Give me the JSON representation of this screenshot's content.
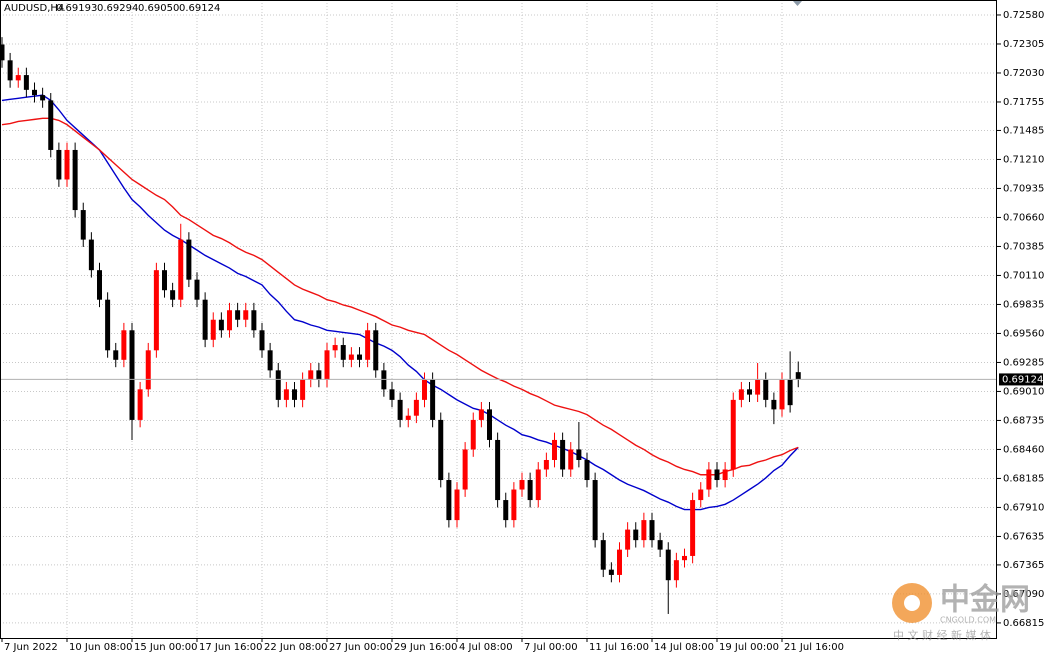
{
  "chart_data": {
    "type": "candlestick",
    "symbol": "AUDUSD,H4",
    "ohlc_labels": [
      "0.69193",
      "0.69294",
      "0.69050",
      "0.69124"
    ],
    "categories": [
      "7 Jun 2022",
      null,
      null,
      null,
      null,
      null,
      null,
      null,
      "10 Jun 08:00",
      null,
      null,
      null,
      null,
      null,
      null,
      null,
      "15 Jun 00:00",
      null,
      null,
      null,
      null,
      null,
      null,
      null,
      "17 Jun 16:00",
      null,
      null,
      null,
      null,
      null,
      null,
      null,
      "22 Jun 08:00",
      null,
      null,
      null,
      null,
      null,
      null,
      null,
      "27 Jun 00:00",
      null,
      null,
      null,
      null,
      null,
      null,
      null,
      "29 Jun 16:00",
      null,
      null,
      null,
      null,
      null,
      null,
      null,
      "4 Jul 08:00",
      null,
      null,
      null,
      null,
      null,
      null,
      null,
      "7 Jul 00:00",
      null,
      null,
      null,
      null,
      null,
      null,
      null,
      "11 Jul 16:00",
      null,
      null,
      null,
      null,
      null,
      null,
      null,
      "14 Jul 08:00",
      null,
      null,
      null,
      null,
      null,
      null,
      null,
      "19 Jul 00:00",
      null,
      null,
      null,
      null,
      null,
      null,
      null,
      "21 Jul 16:00",
      null,
      null
    ],
    "open": [
      0.723,
      0.7215,
      0.7196,
      0.7201,
      0.7187,
      0.7182,
      0.7177,
      0.713,
      0.7102,
      0.713,
      0.7073,
      0.7045,
      0.7016,
      0.6988,
      0.694,
      0.6931,
      0.6959,
      0.6874,
      0.6903,
      0.694,
      0.7016,
      0.6997,
      0.6988,
      0.7045,
      0.7007,
      0.6988,
      0.695,
      0.6969,
      0.6959,
      0.6978,
      0.6969,
      0.6978,
      0.6959,
      0.694,
      0.6921,
      0.6893,
      0.6903,
      0.6893,
      0.6912,
      0.6921,
      0.6912,
      0.694,
      0.6945,
      0.6931,
      0.6936,
      0.6931,
      0.6959,
      0.6921,
      0.6903,
      0.6893,
      0.6874,
      0.6878,
      0.6893,
      0.6912,
      0.6874,
      0.6817,
      0.6779,
      0.6808,
      0.6846,
      0.6874,
      0.6884,
      0.6855,
      0.6798,
      0.6779,
      0.6808,
      0.6817,
      0.6798,
      0.6827,
      0.6836,
      0.6855,
      0.6827,
      0.6846,
      0.6836,
      0.6817,
      0.676,
      0.6732,
      0.6727,
      0.6751,
      0.677,
      0.676,
      0.6779,
      0.676,
      0.6751,
      0.6722,
      0.6741,
      0.6745,
      0.6798,
      0.6808,
      0.6827,
      0.6817,
      0.6827,
      0.6893,
      0.6903,
      0.6898,
      0.6912,
      0.6893,
      0.6884,
      0.6912,
      0.69193
    ],
    "high": [
      0.7237,
      0.7222,
      0.7208,
      0.7208,
      0.7194,
      0.7189,
      0.7184,
      0.7137,
      0.7137,
      0.7137,
      0.708,
      0.7052,
      0.7023,
      0.6995,
      0.6947,
      0.6966,
      0.6966,
      0.691,
      0.6947,
      0.7023,
      0.7023,
      0.7004,
      0.706,
      0.7052,
      0.7014,
      0.6995,
      0.6976,
      0.6976,
      0.6985,
      0.6985,
      0.6985,
      0.6985,
      0.6966,
      0.6947,
      0.6928,
      0.691,
      0.691,
      0.6919,
      0.6928,
      0.6928,
      0.6947,
      0.6952,
      0.6952,
      0.6943,
      0.6943,
      0.6966,
      0.6966,
      0.6928,
      0.691,
      0.69,
      0.6885,
      0.69,
      0.6919,
      0.6919,
      0.6881,
      0.6824,
      0.6815,
      0.6853,
      0.6881,
      0.6891,
      0.6891,
      0.6862,
      0.6805,
      0.6815,
      0.6824,
      0.6824,
      0.6834,
      0.6843,
      0.6862,
      0.6862,
      0.6853,
      0.6872,
      0.6843,
      0.6824,
      0.6767,
      0.6739,
      0.6758,
      0.6777,
      0.6777,
      0.6786,
      0.6786,
      0.6767,
      0.6758,
      0.6748,
      0.6752,
      0.6805,
      0.6815,
      0.6834,
      0.6834,
      0.6834,
      0.69,
      0.691,
      0.691,
      0.6928,
      0.6919,
      0.69,
      0.6919,
      0.6939,
      0.69294
    ],
    "low": [
      0.7208,
      0.7189,
      0.7189,
      0.718,
      0.7175,
      0.717,
      0.7123,
      0.7095,
      0.7095,
      0.7066,
      0.7038,
      0.7009,
      0.6981,
      0.6933,
      0.6924,
      0.6924,
      0.6855,
      0.6867,
      0.6896,
      0.6933,
      0.699,
      0.6981,
      0.6981,
      0.7,
      0.6981,
      0.6943,
      0.6943,
      0.6952,
      0.6952,
      0.6962,
      0.6962,
      0.6952,
      0.6933,
      0.6914,
      0.6886,
      0.6886,
      0.6886,
      0.6886,
      0.6905,
      0.6905,
      0.6905,
      0.6933,
      0.6924,
      0.6924,
      0.6924,
      0.6924,
      0.6914,
      0.6896,
      0.6886,
      0.6867,
      0.6867,
      0.6871,
      0.6886,
      0.6867,
      0.681,
      0.6772,
      0.6772,
      0.6801,
      0.6839,
      0.6867,
      0.6848,
      0.6791,
      0.6772,
      0.6772,
      0.6801,
      0.6791,
      0.6791,
      0.682,
      0.6829,
      0.682,
      0.682,
      0.6829,
      0.681,
      0.6753,
      0.6725,
      0.672,
      0.672,
      0.6744,
      0.6753,
      0.6753,
      0.6753,
      0.6744,
      0.669,
      0.6715,
      0.6734,
      0.6738,
      0.6791,
      0.6801,
      0.681,
      0.681,
      0.682,
      0.6886,
      0.6891,
      0.6891,
      0.6886,
      0.687,
      0.6877,
      0.6881,
      0.6905
    ],
    "close": [
      0.7215,
      0.7196,
      0.7201,
      0.7187,
      0.7182,
      0.7177,
      0.713,
      0.7102,
      0.713,
      0.7073,
      0.7045,
      0.7016,
      0.6988,
      0.694,
      0.6931,
      0.6959,
      0.6874,
      0.6903,
      0.694,
      0.7016,
      0.6997,
      0.6988,
      0.7045,
      0.7007,
      0.6988,
      0.695,
      0.6969,
      0.6959,
      0.6978,
      0.6969,
      0.6978,
      0.6959,
      0.694,
      0.6921,
      0.6893,
      0.6903,
      0.6893,
      0.6912,
      0.6921,
      0.6912,
      0.694,
      0.6945,
      0.6931,
      0.6936,
      0.6931,
      0.6959,
      0.6921,
      0.6903,
      0.6893,
      0.6874,
      0.6878,
      0.6893,
      0.6912,
      0.6874,
      0.6817,
      0.6779,
      0.6808,
      0.6846,
      0.6874,
      0.6884,
      0.6855,
      0.6798,
      0.6779,
      0.6808,
      0.6817,
      0.6798,
      0.6827,
      0.6836,
      0.6855,
      0.6827,
      0.6846,
      0.6836,
      0.6817,
      0.676,
      0.6732,
      0.6727,
      0.6751,
      0.677,
      0.676,
      0.6779,
      0.676,
      0.6751,
      0.6722,
      0.6741,
      0.6745,
      0.6798,
      0.6808,
      0.6827,
      0.6817,
      0.6827,
      0.6893,
      0.6903,
      0.6898,
      0.6912,
      0.6893,
      0.6884,
      0.6912,
      0.6888,
      0.69124
    ],
    "up_color": "#ff0000",
    "down_color": "#000000",
    "moving_averages": [
      {
        "color": "#0000cc",
        "values": [
          0.7177,
          0.7178,
          0.7179,
          0.718,
          0.7181,
          0.7182,
          0.7177,
          0.7168,
          0.7158,
          0.7151,
          0.7144,
          0.7137,
          0.713,
          0.7118,
          0.7106,
          0.7094,
          0.7083,
          0.7076,
          0.7068,
          0.7061,
          0.7054,
          0.7049,
          0.7045,
          0.704,
          0.7035,
          0.703,
          0.7026,
          0.7022,
          0.7018,
          0.7013,
          0.701,
          0.7006,
          0.7002,
          0.6993,
          0.6986,
          0.6977,
          0.6969,
          0.6967,
          0.6964,
          0.6962,
          0.6959,
          0.6958,
          0.6957,
          0.6956,
          0.6955,
          0.6951,
          0.6947,
          0.6944,
          0.694,
          0.6934,
          0.6926,
          0.692,
          0.6912,
          0.6907,
          0.6903,
          0.6898,
          0.6893,
          0.6889,
          0.6885,
          0.6883,
          0.6879,
          0.6874,
          0.6869,
          0.6865,
          0.686,
          0.6858,
          0.6855,
          0.6853,
          0.685,
          0.6847,
          0.6844,
          0.684,
          0.6836,
          0.6831,
          0.6827,
          0.6822,
          0.6817,
          0.6813,
          0.681,
          0.6807,
          0.6803,
          0.6799,
          0.6796,
          0.6792,
          0.6789,
          0.6789,
          0.6789,
          0.6791,
          0.6792,
          0.6794,
          0.6798,
          0.6803,
          0.6808,
          0.6813,
          0.6819,
          0.6826,
          0.6831,
          0.684,
          0.6848
        ]
      },
      {
        "color": "#ee1111",
        "values": [
          0.7154,
          0.7155,
          0.7157,
          0.7158,
          0.7159,
          0.716,
          0.716,
          0.7158,
          0.7154,
          0.7148,
          0.7142,
          0.7136,
          0.713,
          0.7123,
          0.7116,
          0.7109,
          0.7102,
          0.7097,
          0.7092,
          0.7087,
          0.7083,
          0.7076,
          0.7068,
          0.7064,
          0.7059,
          0.7054,
          0.7049,
          0.7046,
          0.7042,
          0.7037,
          0.7033,
          0.703,
          0.7026,
          0.702,
          0.7014,
          0.7008,
          0.7002,
          0.6998,
          0.6995,
          0.6992,
          0.6988,
          0.6986,
          0.6983,
          0.6981,
          0.6978,
          0.6975,
          0.6972,
          0.6968,
          0.6964,
          0.6962,
          0.6959,
          0.6957,
          0.6955,
          0.695,
          0.6945,
          0.694,
          0.6936,
          0.6931,
          0.6926,
          0.6921,
          0.6917,
          0.6913,
          0.691,
          0.6906,
          0.6903,
          0.6899,
          0.6896,
          0.6892,
          0.6888,
          0.6886,
          0.6884,
          0.6882,
          0.6879,
          0.6874,
          0.6869,
          0.6865,
          0.686,
          0.6855,
          0.685,
          0.6846,
          0.6841,
          0.6837,
          0.6834,
          0.683,
          0.6827,
          0.6825,
          0.6822,
          0.6822,
          0.6822,
          0.6825,
          0.6827,
          0.683,
          0.6831,
          0.6834,
          0.6836,
          0.6839,
          0.6841,
          0.6845,
          0.6848
        ]
      }
    ],
    "ylim": [
      0.66653,
      0.72722
    ],
    "yticks": [
      {
        "value": 0.7258,
        "label": "0.72580"
      },
      0.72305,
      {
        "value": 0.7203,
        "label": "0.72030"
      },
      0.71755,
      0.71485,
      {
        "value": 0.7121,
        "label": "0.71210"
      },
      0.70935,
      {
        "value": 0.7066,
        "label": "0.70660"
      },
      0.70385,
      {
        "value": 0.7011,
        "label": "0.70110"
      },
      0.69835,
      {
        "value": 0.6956,
        "label": "0.69560"
      },
      0.69285,
      {
        "value": 0.6901,
        "label": "0.69010"
      },
      0.68735,
      {
        "value": 0.6846,
        "label": "0.68460"
      },
      0.68185,
      {
        "value": 0.6791,
        "label": "0.67910"
      },
      0.67635,
      0.67365,
      {
        "value": 0.6709,
        "label": "0.67090"
      },
      0.66815
    ],
    "grid": true,
    "watermark": {
      "name": "中金网",
      "site": "CNGOLD.COM",
      "slogan": "中 文 财 经 新 媒 体"
    }
  }
}
